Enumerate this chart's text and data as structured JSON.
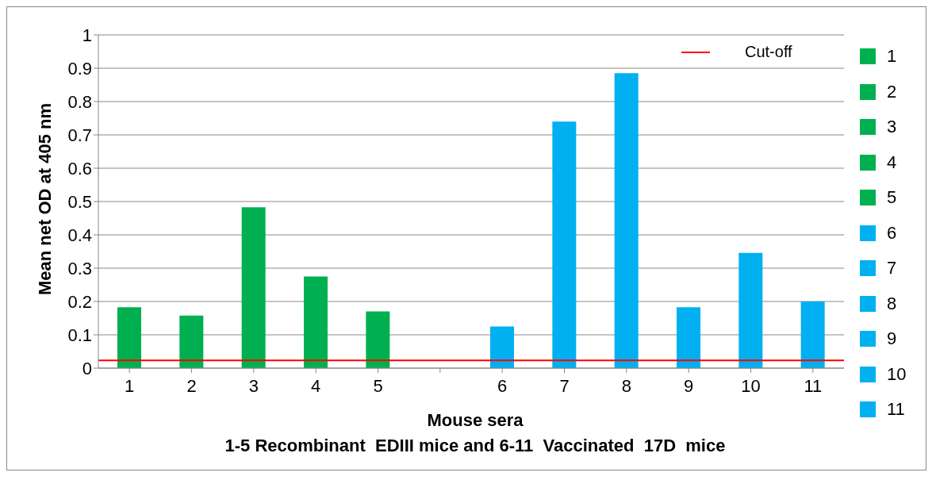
{
  "chart_data": {
    "type": "bar",
    "xlabel": "Mouse sera",
    "ylabel": "Mean net OD at 405 nm",
    "annotations": [
      "1-5 Recombinant  EDIII mice and 6-11  Vaccinated  17D  mice"
    ],
    "categories": [
      "1",
      "2",
      "3",
      "4",
      "5",
      null,
      "6",
      "7",
      "8",
      "9",
      "10",
      "11"
    ],
    "values": [
      0.183,
      0.158,
      0.483,
      0.275,
      0.17,
      null,
      0.125,
      0.74,
      0.885,
      0.183,
      0.346,
      0.2
    ],
    "colors": [
      "#00b050",
      "#00b050",
      "#00b050",
      "#00b050",
      "#00b050",
      null,
      "#00b0f0",
      "#00b0f0",
      "#00b0f0",
      "#00b0f0",
      "#00b0f0",
      "#00b0f0"
    ],
    "ylim": [
      0,
      1
    ],
    "yticks": [
      0,
      0.1,
      0.2,
      0.3,
      0.4,
      0.5,
      0.6,
      0.7,
      0.8,
      0.9,
      1
    ],
    "grid": "y",
    "legend": "right",
    "ref_lines": [
      {
        "axis": "y",
        "value": 0.023,
        "label": "Cut-off",
        "color": "#ff0000"
      }
    ]
  }
}
